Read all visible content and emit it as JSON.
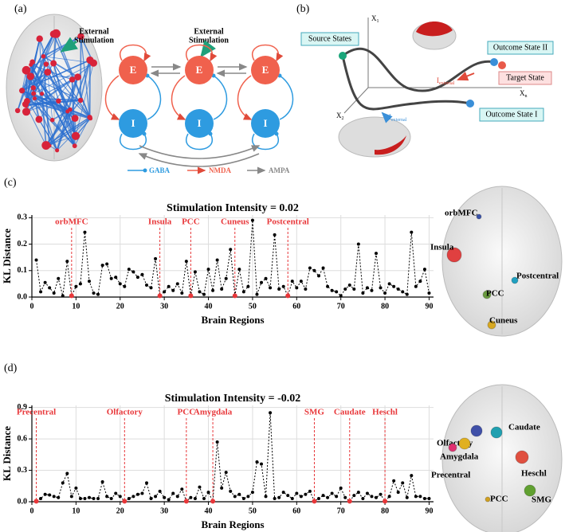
{
  "panel_labels": [
    "(a)",
    "(b)",
    "(c)",
    "(d)"
  ],
  "panel_a": {
    "stimulation_left": [
      "External",
      "Stimulation"
    ],
    "stimulation_mid": [
      "External",
      "Stimulation"
    ],
    "excitatory": "E",
    "inhibitory": "I",
    "legend": [
      {
        "name": "GABA",
        "color": "#2e9be0"
      },
      {
        "name": "NMDA",
        "color": "#f0614d"
      },
      {
        "name": "AMPA",
        "color": "#888888"
      }
    ]
  },
  "panel_b": {
    "axis_x1": {
      "symbol": "X",
      "subscript": "1"
    },
    "axis_x2": {
      "symbol": "X",
      "subscript": "2"
    },
    "axis_xn": {
      "symbol": "X",
      "subscript": "n"
    },
    "source": "Source States",
    "outcome_2": "Outcome State II",
    "target": "Target State",
    "outcome_1": "Outcome State I",
    "input_red": {
      "symbol": "I",
      "subscript": "external"
    },
    "input_blue": {
      "symbol": "I",
      "subscript": "external"
    }
  },
  "chart_data": [
    {
      "type": "line",
      "title": "Stimulation Intensity = 0.02",
      "x_label": "Brain Regions",
      "y_label": "KL Distance",
      "color": "#000000",
      "annotation_color": "#e8373a",
      "grid": true,
      "xlim": [
        0,
        91
      ],
      "ylim": [
        0,
        0.31
      ],
      "xticks": [
        0,
        10,
        20,
        30,
        40,
        50,
        60,
        70,
        80,
        90
      ],
      "yticks": [
        {
          "value": 0,
          "label": "0.0"
        },
        0.1,
        0.2,
        0.3
      ],
      "x": [
        1,
        2,
        3,
        4,
        5,
        6,
        7,
        8,
        9,
        10,
        11,
        12,
        13,
        14,
        15,
        16,
        17,
        18,
        19,
        20,
        21,
        22,
        23,
        24,
        25,
        26,
        27,
        28,
        29,
        30,
        31,
        32,
        33,
        34,
        35,
        36,
        37,
        38,
        39,
        40,
        41,
        42,
        43,
        44,
        45,
        46,
        47,
        48,
        49,
        50,
        51,
        52,
        53,
        54,
        55,
        56,
        57,
        58,
        59,
        60,
        61,
        62,
        63,
        64,
        65,
        66,
        67,
        68,
        69,
        70,
        71,
        72,
        73,
        74,
        75,
        76,
        77,
        78,
        79,
        80,
        81,
        82,
        83,
        84,
        85,
        86,
        87,
        88,
        89,
        90
      ],
      "values": [
        0.14,
        0.02,
        0.055,
        0.035,
        0.015,
        0.07,
        0.005,
        0.135,
        0.005,
        0.04,
        0.05,
        0.245,
        0.06,
        0.015,
        0.01,
        0.12,
        0.125,
        0.07,
        0.075,
        0.05,
        0.04,
        0.105,
        0.095,
        0.075,
        0.085,
        0.045,
        0.035,
        0.145,
        0.005,
        0.02,
        0.04,
        0.025,
        0.05,
        0.015,
        0.135,
        0.005,
        0.095,
        0.02,
        0.01,
        0.105,
        0.025,
        0.14,
        0.03,
        0.07,
        0.18,
        0.005,
        0.105,
        0.02,
        0.04,
        0.29,
        0.01,
        0.055,
        0.07,
        0.035,
        0.235,
        0.03,
        0.04,
        0.005,
        0.06,
        0.035,
        0.06,
        0.03,
        0.11,
        0.1,
        0.08,
        0.11,
        0.04,
        0.025,
        0.02,
        0.005,
        0.03,
        0.045,
        0.03,
        0.2,
        0.015,
        0.035,
        0.025,
        0.165,
        0.035,
        0.015,
        0.05,
        0.04,
        0.03,
        0.02,
        0.01,
        0.245,
        0.04,
        0.06,
        0.105,
        0.015
      ],
      "annotations": [
        {
          "label": "orbMFC",
          "x": 9
        },
        {
          "label": "Insula",
          "x": 29
        },
        {
          "label": "PCC",
          "x": 36
        },
        {
          "label": "Cuneus",
          "x": 46
        },
        {
          "label": "Postcentral",
          "x": 58
        }
      ],
      "brain_map": [
        {
          "label": "orbMFC",
          "color": "#3a52a8"
        },
        {
          "label": "Insula",
          "color": "#e04040"
        },
        {
          "label": "Postcentral",
          "color": "#20a0c0"
        },
        {
          "label": "PCC",
          "color": "#6a9a40"
        },
        {
          "label": "Cuneus",
          "color": "#d8a820"
        }
      ]
    },
    {
      "type": "line",
      "title": "Stimulation Intensity = -0.02",
      "x_label": "Brain Regions",
      "y_label": "KL Distance",
      "color": "#000000",
      "annotation_color": "#e8373a",
      "grid": true,
      "xlim": [
        0,
        91
      ],
      "ylim": [
        0,
        0.92
      ],
      "xticks": [
        0,
        10,
        20,
        30,
        40,
        50,
        60,
        70,
        80,
        90
      ],
      "yticks": [
        {
          "value": 0,
          "label": "0.0"
        },
        0.3,
        0.6,
        0.9
      ],
      "x": [
        1,
        2,
        3,
        4,
        5,
        6,
        7,
        8,
        9,
        10,
        11,
        12,
        13,
        14,
        15,
        16,
        17,
        18,
        19,
        20,
        21,
        22,
        23,
        24,
        25,
        26,
        27,
        28,
        29,
        30,
        31,
        32,
        33,
        34,
        35,
        36,
        37,
        38,
        39,
        40,
        41,
        42,
        43,
        44,
        45,
        46,
        47,
        48,
        49,
        50,
        51,
        52,
        53,
        54,
        55,
        56,
        57,
        58,
        59,
        60,
        61,
        62,
        63,
        64,
        65,
        66,
        67,
        68,
        69,
        70,
        71,
        72,
        73,
        74,
        75,
        76,
        77,
        78,
        79,
        80,
        81,
        82,
        83,
        84,
        85,
        86,
        87,
        88,
        89,
        90
      ],
      "values": [
        0.005,
        0.03,
        0.07,
        0.065,
        0.05,
        0.04,
        0.18,
        0.27,
        0.05,
        0.13,
        0.03,
        0.03,
        0.04,
        0.03,
        0.03,
        0.19,
        0.05,
        0.03,
        0.08,
        0.05,
        0.005,
        0.03,
        0.05,
        0.07,
        0.08,
        0.18,
        0.03,
        0.05,
        0.1,
        0.04,
        0.02,
        0.08,
        0.05,
        0.12,
        0.005,
        0.04,
        0.03,
        0.14,
        0.03,
        0.09,
        0.005,
        0.57,
        0.13,
        0.28,
        0.1,
        0.05,
        0.07,
        0.03,
        0.05,
        0.09,
        0.38,
        0.36,
        0.05,
        0.85,
        0.03,
        0.04,
        0.09,
        0.06,
        0.03,
        0.08,
        0.05,
        0.07,
        0.1,
        0.005,
        0.03,
        0.06,
        0.04,
        0.08,
        0.05,
        0.13,
        0.04,
        0.005,
        0.06,
        0.09,
        0.03,
        0.08,
        0.05,
        0.04,
        0.07,
        0.005,
        0.05,
        0.2,
        0.09,
        0.18,
        0.04,
        0.25,
        0.05,
        0.05,
        0.03,
        0.03
      ],
      "annotations": [
        {
          "label": "Precentral",
          "x": 1
        },
        {
          "label": "Olfactory",
          "x": 21
        },
        {
          "label": "PCC",
          "x": 35
        },
        {
          "label": "Amygdala",
          "x": 41
        },
        {
          "label": "SMG",
          "x": 64
        },
        {
          "label": "Caudate",
          "x": 72
        },
        {
          "label": "Heschl",
          "x": 80
        }
      ],
      "brain_map": [
        {
          "label": "Olfactory",
          "color": "#4050a8"
        },
        {
          "label": "Caudate",
          "color": "#20a0b0"
        },
        {
          "label": "Amygdala",
          "color": "#e0b020"
        },
        {
          "label": "Precentral",
          "color": "#e03070"
        },
        {
          "label": "Heschl",
          "color": "#e05040"
        },
        {
          "label": "PCC",
          "color": "#d0a020"
        },
        {
          "label": "SMG",
          "color": "#60a030"
        }
      ]
    }
  ]
}
